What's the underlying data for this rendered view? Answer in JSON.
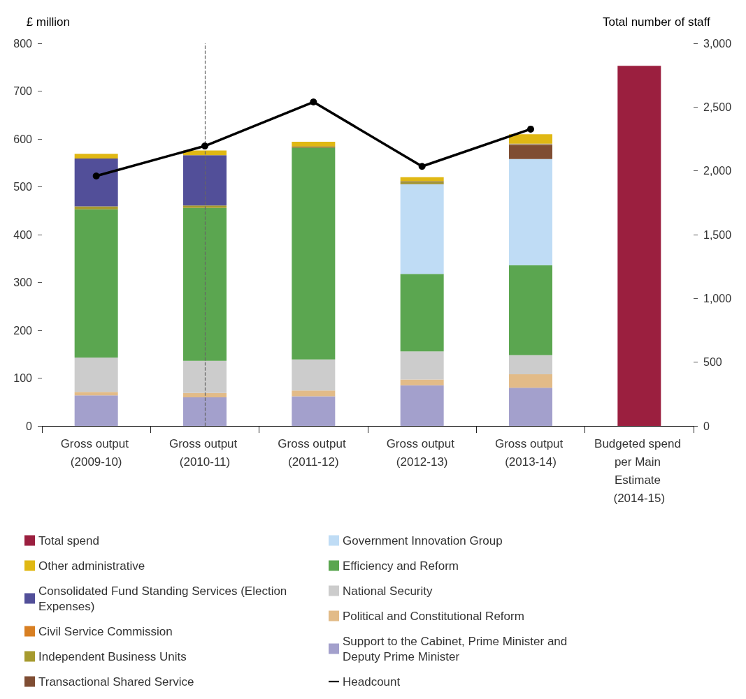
{
  "chart_data": {
    "type": "bar",
    "stacked": true,
    "categories": [
      "Gross output (2009-10)",
      "Gross output (2010-11)",
      "Gross output (2011-12)",
      "Gross output (2012-13)",
      "Gross output (2013-14)",
      "Budgeted spend per Main Estimate (2014-15)"
    ],
    "ylabel": "£ million",
    "y2label": "Total number of staff",
    "ylim": [
      0,
      800
    ],
    "yticks": [
      0,
      100,
      200,
      300,
      400,
      500,
      600,
      700,
      800
    ],
    "y2lim": [
      0,
      3000
    ],
    "y2ticks": [
      0,
      500,
      {
        "value": 1000,
        "label": "1,000"
      },
      {
        "value": 1500,
        "label": "1,500"
      },
      {
        "value": 2000,
        "label": "2,000"
      },
      {
        "value": 2500,
        "label": "2,500"
      },
      {
        "value": 3000,
        "label": "3,000"
      }
    ],
    "legend": "bottom",
    "series": [
      {
        "name": "Support to the Cabinet, Prime Minister and Deputy Prime Minister",
        "color": "#a3a0cc",
        "values": [
          64,
          60,
          62,
          85,
          80,
          null
        ]
      },
      {
        "name": "Political and Constitutional Reform",
        "color": "#e2bb88",
        "values": [
          7,
          9,
          12,
          12,
          28,
          null
        ]
      },
      {
        "name": "National Security",
        "color": "#cccccc",
        "values": [
          72,
          67,
          65,
          59,
          40,
          null
        ]
      },
      {
        "name": "Efficiency and Reform",
        "color": "#5ba650",
        "values": [
          310,
          320,
          442,
          162,
          188,
          null
        ]
      },
      {
        "name": "Government Innovation Group",
        "color": "#bfdcf5",
        "values": [
          null,
          null,
          null,
          187,
          222,
          null
        ]
      },
      {
        "name": "Transactional Shared Service",
        "color": "#7f4d33",
        "values": [
          null,
          null,
          null,
          1,
          29,
          null
        ]
      },
      {
        "name": "Independent Business Units",
        "color": "#a69a2e",
        "values": [
          6,
          5,
          2,
          4,
          1,
          null
        ]
      },
      {
        "name": "Civil Service Commission",
        "color": "#d87f22",
        "values": [
          null,
          null,
          null,
          null,
          1,
          null
        ]
      },
      {
        "name": "Consolidated Fund Standing Services (Election Expenses)",
        "color": "#524f99",
        "values": [
          100,
          105,
          1,
          1,
          1,
          null
        ]
      },
      {
        "name": "Other administrative",
        "color": "#e0b814",
        "values": [
          10,
          10,
          10,
          9,
          20,
          null
        ]
      },
      {
        "name": "Total spend",
        "color": "#9b1f3f",
        "values": [
          null,
          null,
          null,
          null,
          null,
          753
        ]
      },
      {
        "name": "Headcount",
        "type": "line",
        "axis": "y2",
        "color": "#000000",
        "marker": "circle",
        "values": [
          1960,
          2195,
          2540,
          2035,
          2327,
          null
        ]
      }
    ]
  }
}
